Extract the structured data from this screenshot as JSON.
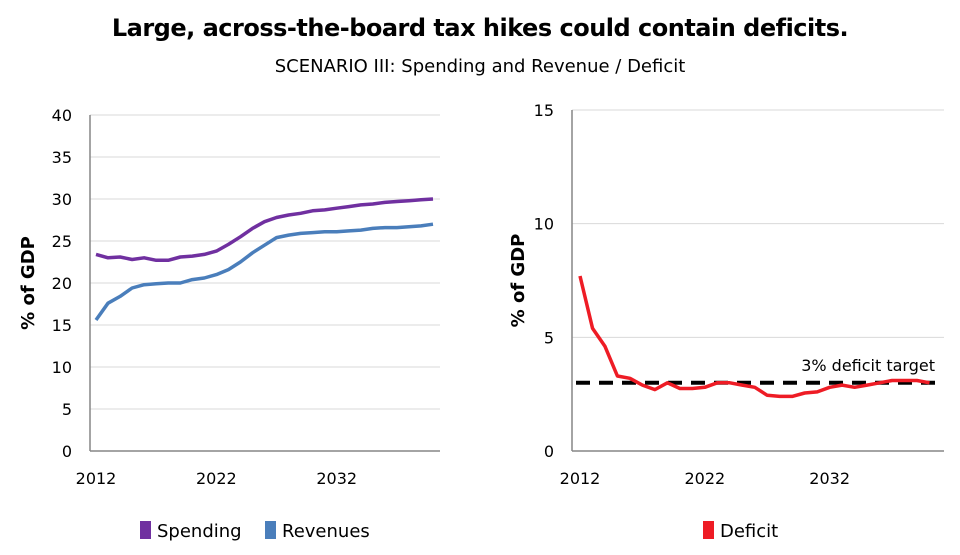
{
  "title": "Large, across-the-board tax hikes could contain deficits.",
  "subtitle": "SCENARIO III: Spending and Revenue / Deficit",
  "chart_data": [
    {
      "type": "line",
      "ylabel": "% of GDP",
      "xlabel": "",
      "ylim": [
        0,
        40
      ],
      "yticks": [
        0,
        5,
        10,
        15,
        20,
        25,
        30,
        35,
        40
      ],
      "xlim": [
        2012,
        2040
      ],
      "xticks": [
        2012,
        2022,
        2032
      ],
      "grid": true,
      "legend": "bottom",
      "x": [
        2012,
        2013,
        2014,
        2015,
        2016,
        2017,
        2018,
        2019,
        2020,
        2021,
        2022,
        2023,
        2024,
        2025,
        2026,
        2027,
        2028,
        2029,
        2030,
        2031,
        2032,
        2033,
        2034,
        2035,
        2036,
        2037,
        2038,
        2039,
        2040
      ],
      "series": [
        {
          "name": "Spending",
          "color": "#7030a0",
          "values": [
            23.4,
            23.0,
            23.1,
            22.8,
            23.0,
            22.7,
            22.7,
            23.1,
            23.2,
            23.4,
            23.8,
            24.6,
            25.5,
            26.5,
            27.3,
            27.8,
            28.1,
            28.3,
            28.6,
            28.7,
            28.9,
            29.1,
            29.3,
            29.4,
            29.6,
            29.7,
            29.8,
            29.9,
            30.0
          ]
        },
        {
          "name": "Revenues",
          "color": "#4a7ebb",
          "values": [
            15.6,
            17.6,
            18.4,
            19.4,
            19.8,
            19.9,
            20.0,
            20.0,
            20.4,
            20.6,
            21.0,
            21.6,
            22.5,
            23.6,
            24.5,
            25.4,
            25.7,
            25.9,
            26.0,
            26.1,
            26.1,
            26.2,
            26.3,
            26.5,
            26.6,
            26.6,
            26.7,
            26.8,
            27.0
          ]
        }
      ]
    },
    {
      "type": "line",
      "ylabel": "% of GDP",
      "xlabel": "",
      "ylim": [
        0,
        15
      ],
      "yticks": [
        0,
        5,
        10,
        15
      ],
      "xlim": [
        2012,
        2041
      ],
      "xticks": [
        2012,
        2022,
        2032
      ],
      "grid": true,
      "legend": "bottom",
      "x": [
        2012,
        2013,
        2014,
        2015,
        2016,
        2017,
        2018,
        2019,
        2020,
        2021,
        2022,
        2023,
        2024,
        2025,
        2026,
        2027,
        2028,
        2029,
        2030,
        2031,
        2032,
        2033,
        2034,
        2035,
        2036,
        2037,
        2038,
        2039,
        2040
      ],
      "series": [
        {
          "name": "Deficit",
          "color": "#ee1c25",
          "values": [
            7.7,
            5.4,
            4.6,
            3.3,
            3.2,
            2.9,
            2.7,
            3.0,
            2.75,
            2.75,
            2.8,
            3.0,
            3.0,
            2.9,
            2.8,
            2.45,
            2.4,
            2.4,
            2.55,
            2.6,
            2.8,
            2.9,
            2.8,
            2.9,
            3.0,
            3.1,
            3.1,
            3.1,
            3.0
          ]
        }
      ],
      "reference_line": {
        "value": 3,
        "label": "3% deficit target",
        "style": "dashed",
        "color": "#000000"
      }
    }
  ]
}
